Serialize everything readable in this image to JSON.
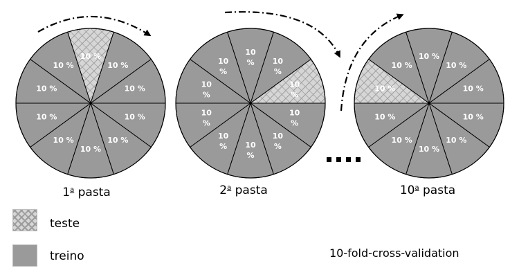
{
  "colors": {
    "train": "#9a9a9a",
    "test_base": "#d6d6d6",
    "test_hatch": "#9c9c9c",
    "outline": "#000000",
    "label_text": "#ffffff"
  },
  "segments_per_fold": 10,
  "segment_label": "10 %",
  "segment_label_split": [
    "10",
    "%"
  ],
  "folds": [
    {
      "ordinal": "1",
      "suffix": "a",
      "caption_word": "pasta",
      "test_segment_index": 0,
      "label_style": "single",
      "arrow_position": "top"
    },
    {
      "ordinal": "2",
      "suffix": "a",
      "caption_word": "pasta",
      "test_segment_index": 1,
      "label_style": "split",
      "arrow_position": "top-right"
    },
    {
      "ordinal": "10",
      "suffix": "a",
      "caption_word": "pasta",
      "test_segment_index": 9,
      "label_style": "single",
      "arrow_position": "left"
    }
  ],
  "ellipsis": "....",
  "legend": [
    {
      "key": "test",
      "label": "teste",
      "swatch": "hatched"
    },
    {
      "key": "train",
      "label": "treino",
      "swatch": "solid"
    }
  ],
  "title": "10-fold-cross-validation"
}
